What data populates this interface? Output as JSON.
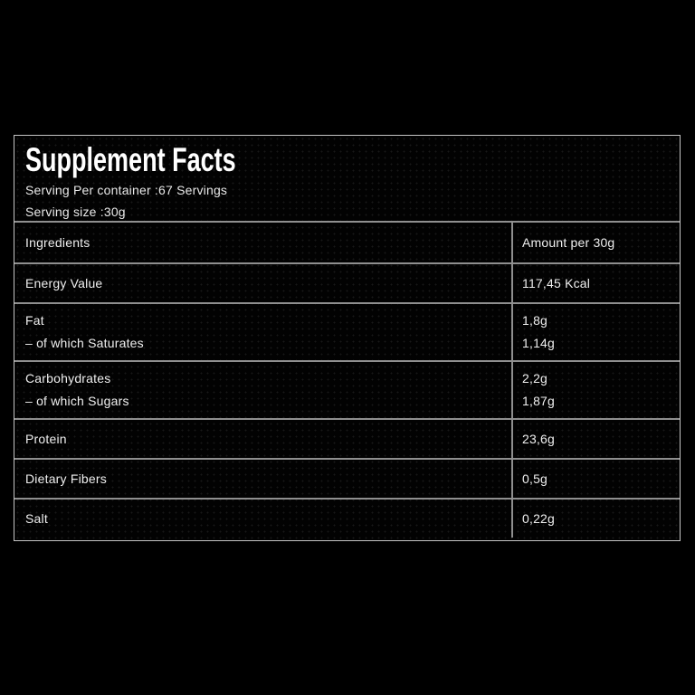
{
  "page": {
    "background_color": "#000000"
  },
  "label": {
    "title": "Supplement Facts",
    "serving_per_container": "Serving Per container :67 Servings",
    "serving_size": "Serving size :30g",
    "columns": {
      "ingredients": "Ingredients",
      "amount": "Amount per 30g"
    },
    "rows": [
      {
        "labels": [
          "Energy Value"
        ],
        "amounts": [
          "117,45 Kcal"
        ]
      },
      {
        "labels": [
          "Fat",
          "– of which Saturates"
        ],
        "amounts": [
          "1,8g",
          "1,14g"
        ]
      },
      {
        "labels": [
          "Carbohydrates",
          "– of which Sugars"
        ],
        "amounts": [
          "2,2g",
          "1,87g"
        ]
      },
      {
        "labels": [
          "Protein"
        ],
        "amounts": [
          "23,6g"
        ]
      },
      {
        "labels": [
          "Dietary Fibers"
        ],
        "amounts": [
          "0,5g"
        ]
      },
      {
        "labels": [
          "Salt"
        ],
        "amounts": [
          "0,22g"
        ]
      }
    ],
    "colors": {
      "panel_border": "#c6c6c6",
      "inner_lines": "#8f8f8f",
      "text": "#efefef",
      "title_text": "#ffffff",
      "background": "#000000"
    }
  }
}
